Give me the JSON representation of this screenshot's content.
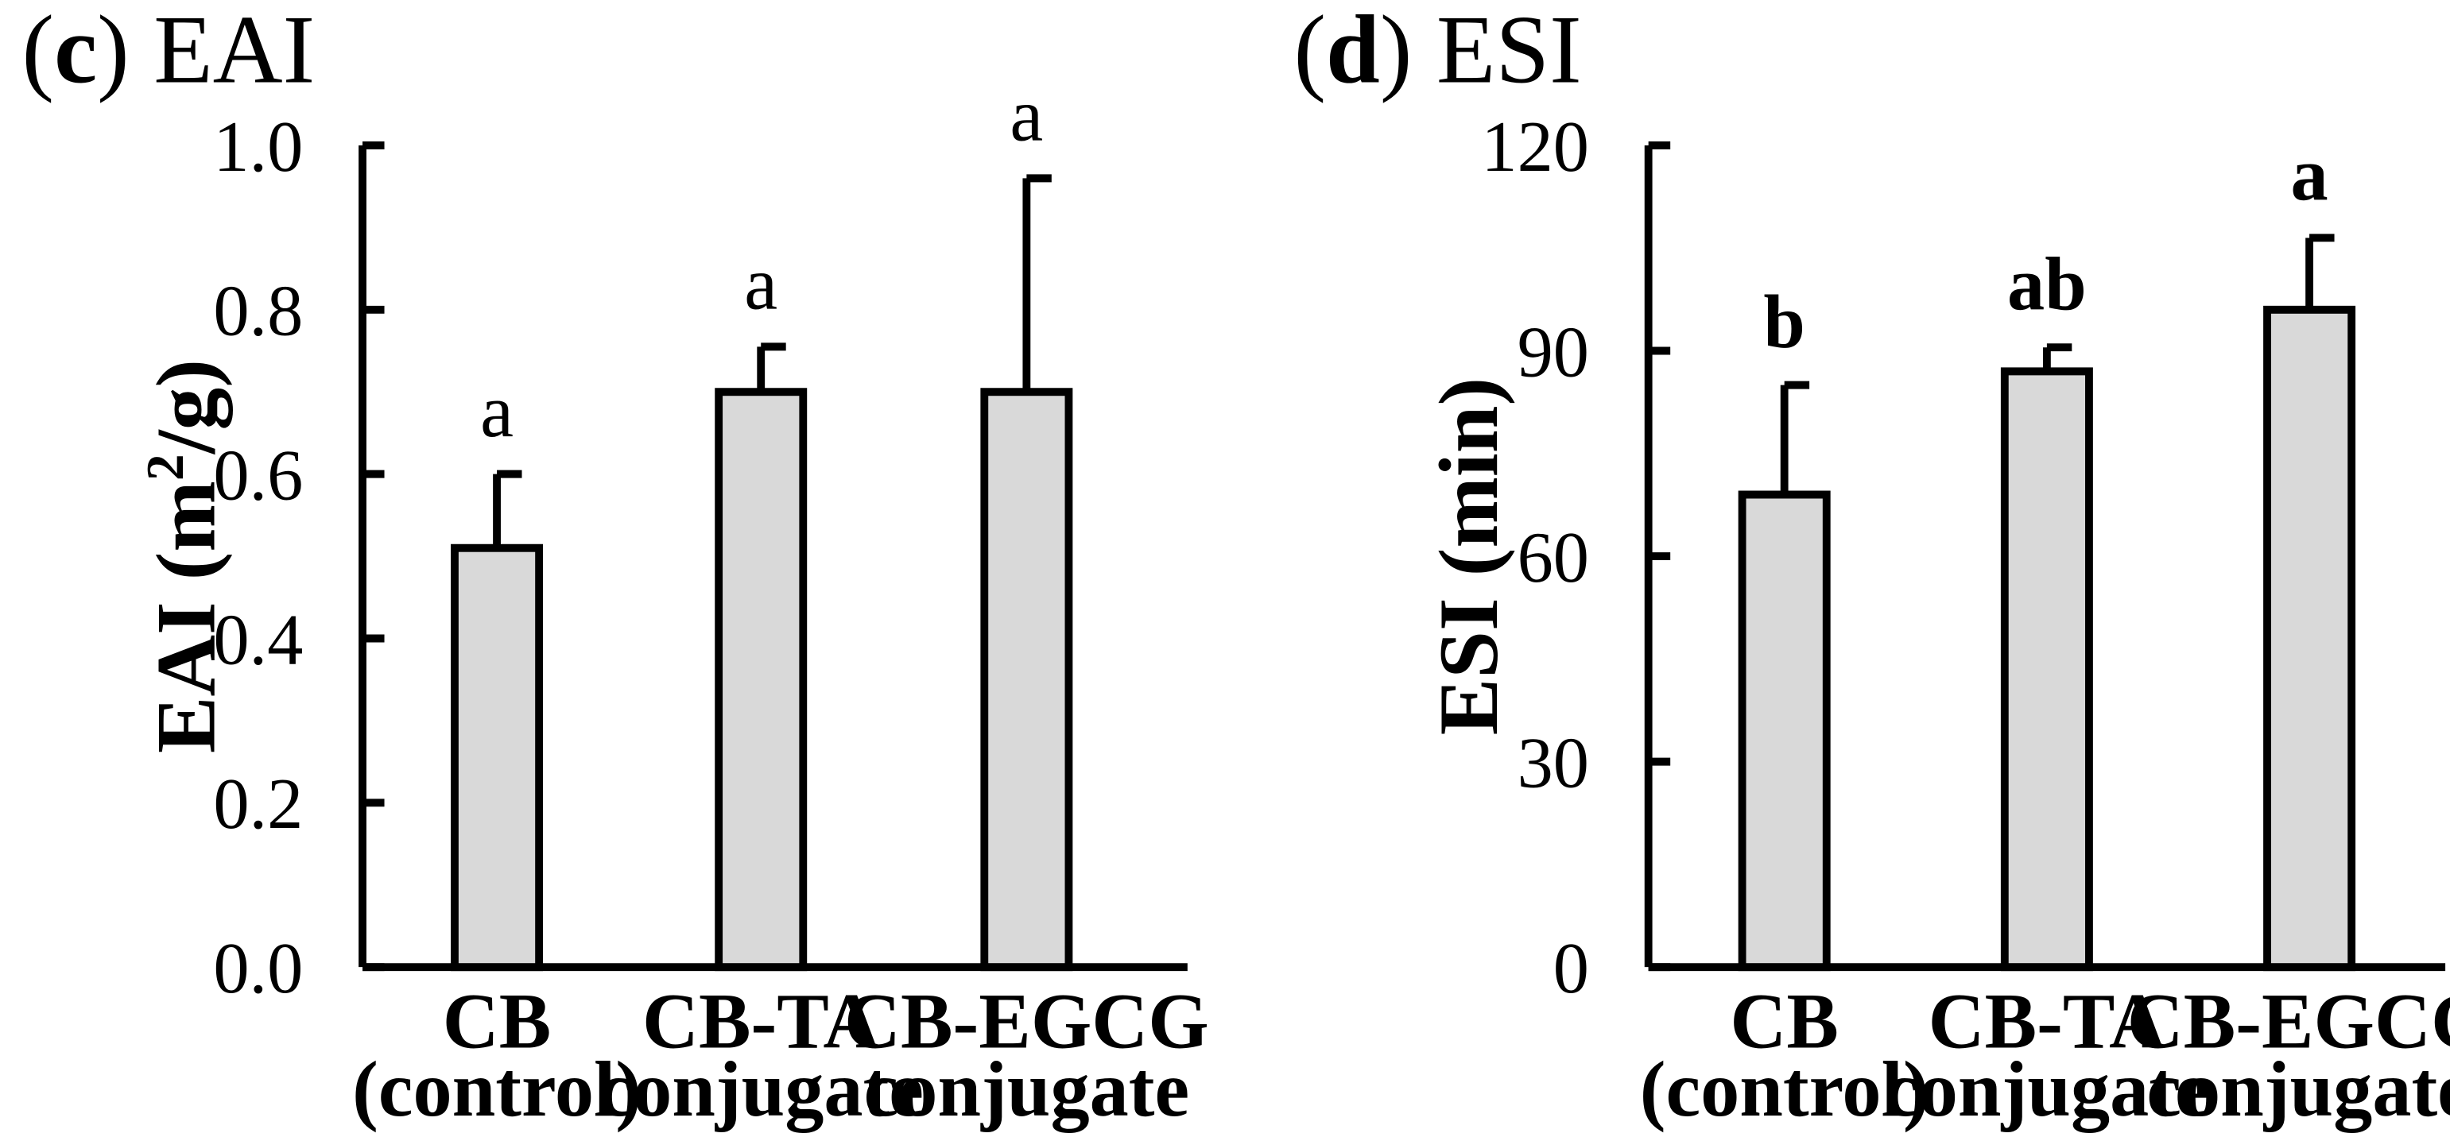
{
  "chart_data": [
    {
      "panel": "(c)",
      "panel_letter": "c",
      "title": "EAI",
      "type": "bar",
      "ylabel_main": "EAI (m",
      "ylabel_sup": "2",
      "ylabel_end": "/g)",
      "ylim": [
        0,
        1.0
      ],
      "yticks": [
        0.0,
        0.2,
        0.4,
        0.6,
        0.8,
        1.0
      ],
      "ytick_labels": [
        "0.0",
        "0.2",
        "0.4",
        "0.6",
        "0.8",
        "1.0"
      ],
      "categories": [
        {
          "line1": "CB",
          "line2": "(control)"
        },
        {
          "line1": "CB-TA",
          "line2": "conjugate"
        },
        {
          "line1": "CB-EGCG",
          "line2": "conjugate"
        }
      ],
      "values": [
        0.51,
        0.7,
        0.7
      ],
      "errors": [
        0.09,
        0.055,
        0.26
      ],
      "significance": [
        "a",
        "a",
        "a"
      ]
    },
    {
      "panel": "(d)",
      "panel_letter": "d",
      "title": "ESI",
      "type": "bar",
      "ylabel_main": "ESI (min)",
      "ylabel_sup": "",
      "ylabel_end": "",
      "ylim": [
        0,
        120
      ],
      "yticks": [
        0,
        30,
        60,
        90,
        120
      ],
      "ytick_labels": [
        "0",
        "30",
        "60",
        "90",
        "120"
      ],
      "categories": [
        {
          "line1": "CB",
          "line2": "(control)"
        },
        {
          "line1": "CB-TA",
          "line2": "conjugate"
        },
        {
          "line1": "CB-EGCG",
          "line2": "conjugate"
        }
      ],
      "values": [
        69,
        87,
        96
      ],
      "errors": [
        16,
        3.5,
        10.5
      ],
      "significance": [
        "b",
        "ab",
        "a"
      ]
    }
  ]
}
